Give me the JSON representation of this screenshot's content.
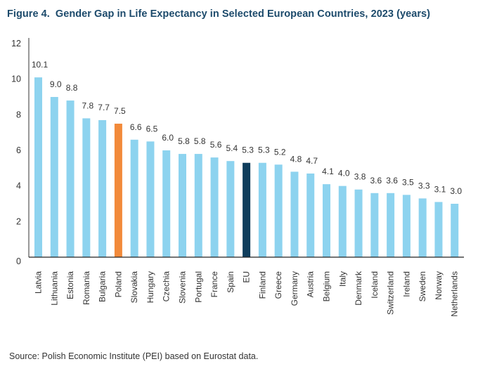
{
  "chart_data": {
    "type": "bar",
    "title_prefix": "Figure 4.",
    "title": "Gender Gap in Life Expectancy in Selected European Countries, 2023 (years)",
    "xlabel": "",
    "ylabel": "",
    "ylim": [
      0,
      12
    ],
    "yticks": [
      0,
      2,
      4,
      6,
      8,
      10,
      12
    ],
    "grid": false,
    "legend": "none",
    "categories": [
      "Latvia",
      "Lithuania",
      "Estonia",
      "Romania",
      "Bulgaria",
      "Poland",
      "Slovakia",
      "Hungary",
      "Czechia",
      "Slovenia",
      "Portugal",
      "France",
      "Spain",
      "EU",
      "Finland",
      "Greece",
      "Germany",
      "Austria",
      "Belgium",
      "Italy",
      "Denmark",
      "Iceland",
      "Switzerland",
      "Ireland",
      "Sweden",
      "Norway",
      "Netherlands"
    ],
    "values": [
      10.1,
      9.0,
      8.8,
      7.8,
      7.7,
      7.5,
      6.6,
      6.5,
      6.0,
      5.8,
      5.8,
      5.6,
      5.4,
      5.3,
      5.3,
      5.2,
      4.8,
      4.7,
      4.1,
      4.0,
      3.8,
      3.6,
      3.6,
      3.5,
      3.3,
      3.1,
      3.0
    ],
    "data_labels": [
      "10.1",
      "9.0",
      "8.8",
      "7.8",
      "7.7",
      "7.5",
      "6.6",
      "6.5",
      "6.0",
      "5.8",
      "5.8",
      "5.6",
      "5.4",
      "5.3",
      "5.3",
      "5.2",
      "4.8",
      "4.7",
      "4.1",
      "4.0",
      "3.8",
      "3.6",
      "3.6",
      "3.5",
      "3.3",
      "3.1",
      "3.0"
    ],
    "colors": {
      "default": "#8dd3ef",
      "highlight": {
        "Poland": "#f28a3a",
        "EU": "#0f3d5c"
      }
    }
  },
  "source": "Source: Polish Economic Institute (PEI) based on Eurostat data."
}
